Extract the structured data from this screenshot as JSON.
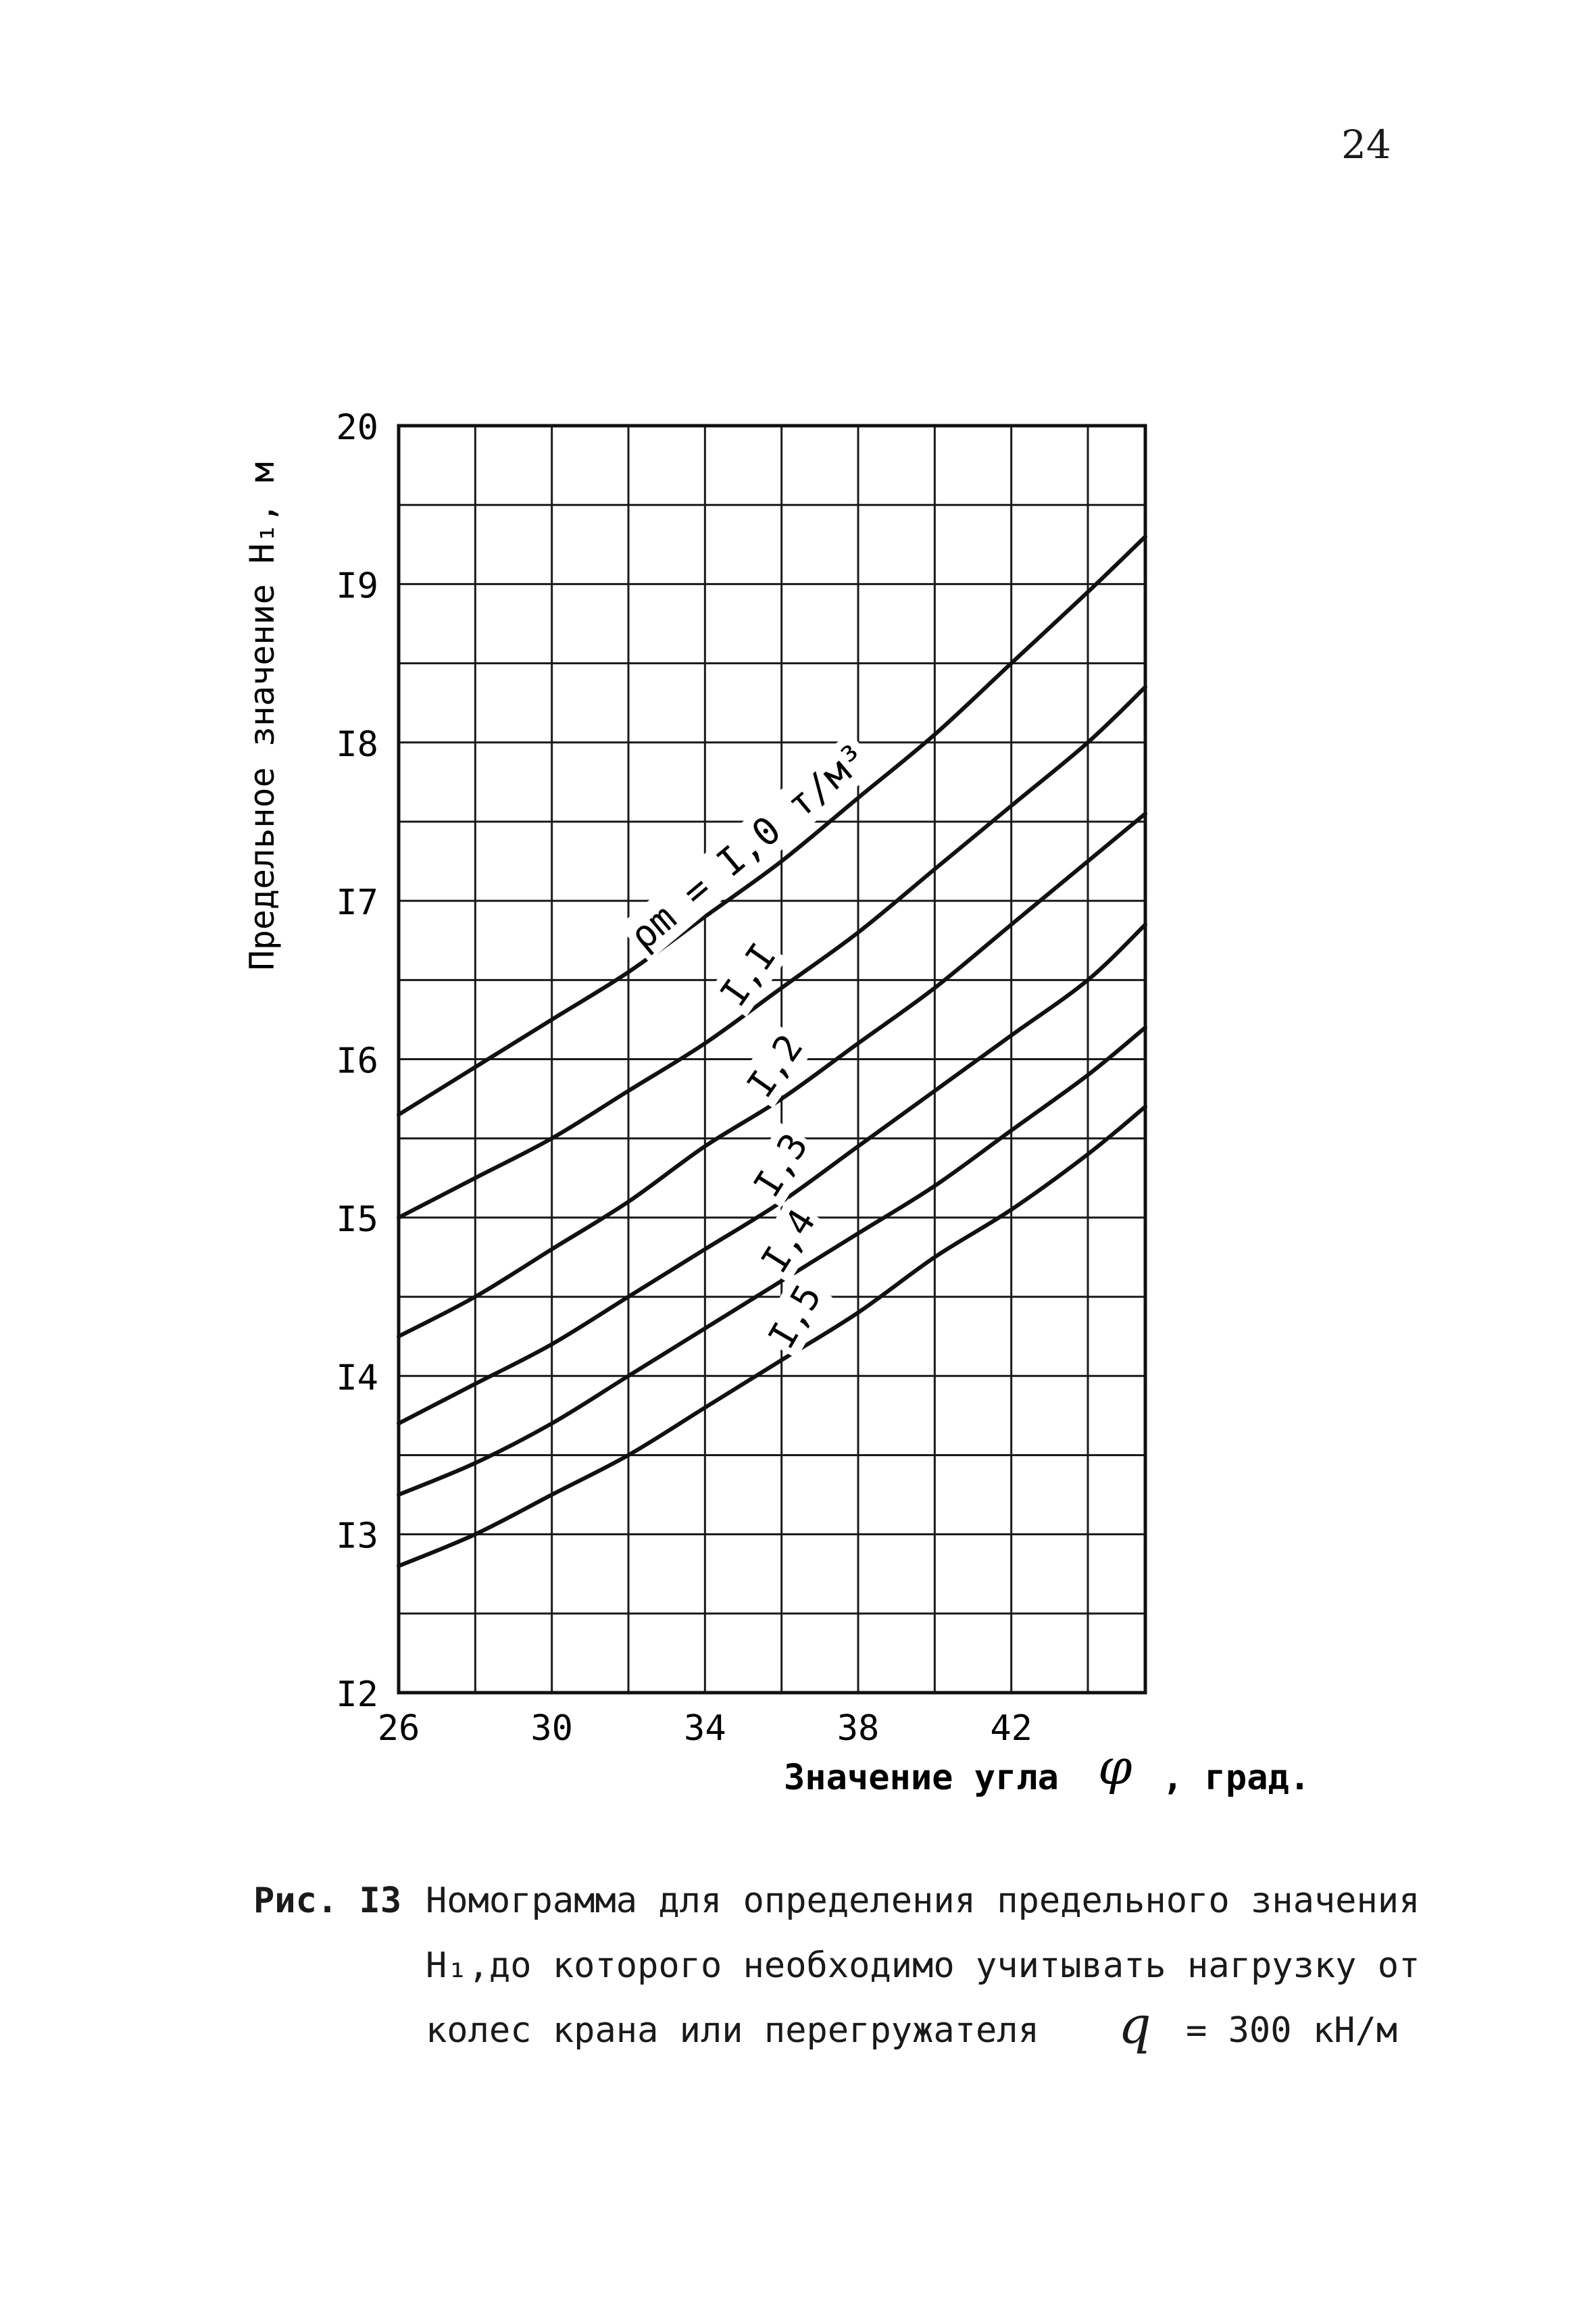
{
  "page": {
    "number": "24"
  },
  "caption": {
    "label": "Рис. I3",
    "line1": "Номограмма для определения предельного значения",
    "line2": "Н₁,до которого необходимо учитывать нагрузку от",
    "line3": "колес крана или перегружателя",
    "q_symbol": "q",
    "q_value": "= 300 кН/м"
  },
  "chart_data": {
    "type": "line",
    "ylabel": "Предельное значение Н₁, м",
    "xlabel_text": "Значение угла",
    "xlabel_symbol": "φ",
    "xlabel_unit": ", град.",
    "xlim": [
      26,
      45.5
    ],
    "ylim": [
      12,
      20
    ],
    "x_ticks": [
      "26",
      "30",
      "34",
      "38",
      "42"
    ],
    "x_tick_values": [
      26,
      30,
      34,
      38,
      42
    ],
    "y_ticks": [
      "I2",
      "I3",
      "I4",
      "I5",
      "I6",
      "I7",
      "I8",
      "I9",
      "20"
    ],
    "y_tick_values": [
      12,
      13,
      14,
      15,
      16,
      17,
      18,
      19,
      20
    ],
    "grid": true,
    "grid_x_values": [
      26,
      28,
      30,
      32,
      34,
      36,
      38,
      40,
      42,
      44,
      45.5
    ],
    "grid_y_values": [
      12,
      12.5,
      13,
      13.5,
      14,
      14.5,
      15,
      15.5,
      16,
      16.5,
      17,
      17.5,
      18,
      18.5,
      19,
      19.5,
      20
    ],
    "series": [
      {
        "name": "ρm = I,0 т/м³",
        "label": "ρm = I,0 т/м³",
        "x": [
          26,
          28,
          30,
          32,
          34,
          36,
          38,
          40,
          42,
          44,
          45.5
        ],
        "values": [
          15.65,
          15.95,
          16.25,
          16.55,
          16.9,
          17.25,
          17.65,
          18.05,
          18.5,
          18.95,
          19.3
        ]
      },
      {
        "name": "I,I",
        "label": "I,I",
        "x": [
          26,
          28,
          30,
          32,
          34,
          36,
          38,
          40,
          42,
          44,
          45.5
        ],
        "values": [
          15.0,
          15.25,
          15.5,
          15.8,
          16.1,
          16.45,
          16.8,
          17.2,
          17.6,
          18.0,
          18.35
        ]
      },
      {
        "name": "I,2",
        "label": "I,2",
        "x": [
          26,
          28,
          30,
          32,
          34,
          36,
          38,
          40,
          42,
          44,
          45.5
        ],
        "values": [
          14.25,
          14.5,
          14.8,
          15.1,
          15.45,
          15.75,
          16.1,
          16.45,
          16.85,
          17.25,
          17.55
        ]
      },
      {
        "name": "I,3",
        "label": "I,3",
        "x": [
          26,
          28,
          30,
          32,
          34,
          36,
          38,
          40,
          42,
          44,
          45.5
        ],
        "values": [
          13.7,
          13.95,
          14.2,
          14.5,
          14.8,
          15.1,
          15.45,
          15.8,
          16.15,
          16.5,
          16.85
        ]
      },
      {
        "name": "I,4",
        "label": "I,4",
        "x": [
          26,
          28,
          30,
          32,
          34,
          36,
          38,
          40,
          42,
          44,
          45.5
        ],
        "values": [
          13.25,
          13.45,
          13.7,
          14.0,
          14.3,
          14.6,
          14.9,
          15.2,
          15.55,
          15.9,
          16.2
        ]
      },
      {
        "name": "I,5",
        "label": "I,5",
        "x": [
          26,
          28,
          30,
          32,
          34,
          36,
          38,
          40,
          42,
          44,
          45.5
        ],
        "values": [
          12.8,
          13.0,
          13.25,
          13.5,
          13.8,
          14.1,
          14.4,
          14.75,
          15.05,
          15.4,
          15.7
        ]
      }
    ]
  }
}
